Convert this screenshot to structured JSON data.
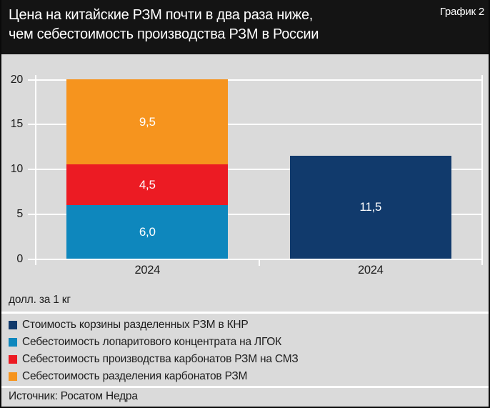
{
  "header": {
    "title_line1": "Цена на китайские РЗМ почти в два раза ниже,",
    "title_line2": "чем себестоимость производства РЗМ в России",
    "figure_label": "График 2"
  },
  "chart_data": {
    "type": "bar",
    "stacked": true,
    "title": "Цена на китайские РЗМ почти в два раза ниже, чем себестоимость производства РЗМ в России",
    "unit_label": "долл. за 1 кг",
    "ylim": [
      0,
      20
    ],
    "yticks": [
      0,
      5,
      10,
      15,
      20
    ],
    "grid": "horizontal-white",
    "legend_position": "bottom",
    "categories": [
      "2024",
      "2024"
    ],
    "bars": [
      {
        "category": "2024",
        "segments": [
          {
            "name": "Себестоимость лопаритового концентрата на ЛГОК",
            "value": 6.0,
            "label": "6,0",
            "color": "#0e87bd"
          },
          {
            "name": "Себестоимость производства карбонатов РЗМ на СМЗ",
            "value": 4.5,
            "label": "4,5",
            "color": "#ec1b23"
          },
          {
            "name": "Себестоимость разделения карбонатов РЗМ",
            "value": 9.5,
            "label": "9,5",
            "color": "#f6941e"
          }
        ]
      },
      {
        "category": "2024",
        "segments": [
          {
            "name": "Стоимость корзины разделенных РЗМ в КНР",
            "value": 11.5,
            "label": "11,5",
            "color": "#113a6c"
          }
        ]
      }
    ],
    "legend": [
      {
        "label": "Стоимость корзины разделенных РЗМ в КНР",
        "color": "#113a6c"
      },
      {
        "label": "Себестоимость лопаритового концентрата на ЛГОК",
        "color": "#0e87bd"
      },
      {
        "label": "Себестоимость производства карбонатов РЗМ на СМЗ",
        "color": "#ec1b23"
      },
      {
        "label": "Себестоимость разделения карбонатов РЗМ",
        "color": "#f6941e"
      }
    ]
  },
  "source": "Источник: Росатом Недра",
  "colors": {
    "header_bg": "#141414",
    "body_bg": "#dadada",
    "grid": "#ffffff",
    "text_dark": "#1c1c1c",
    "text_light": "#ffffff",
    "navy": "#113a6c",
    "blue": "#0e87bd",
    "red": "#ec1b23",
    "orange": "#f6941e"
  }
}
